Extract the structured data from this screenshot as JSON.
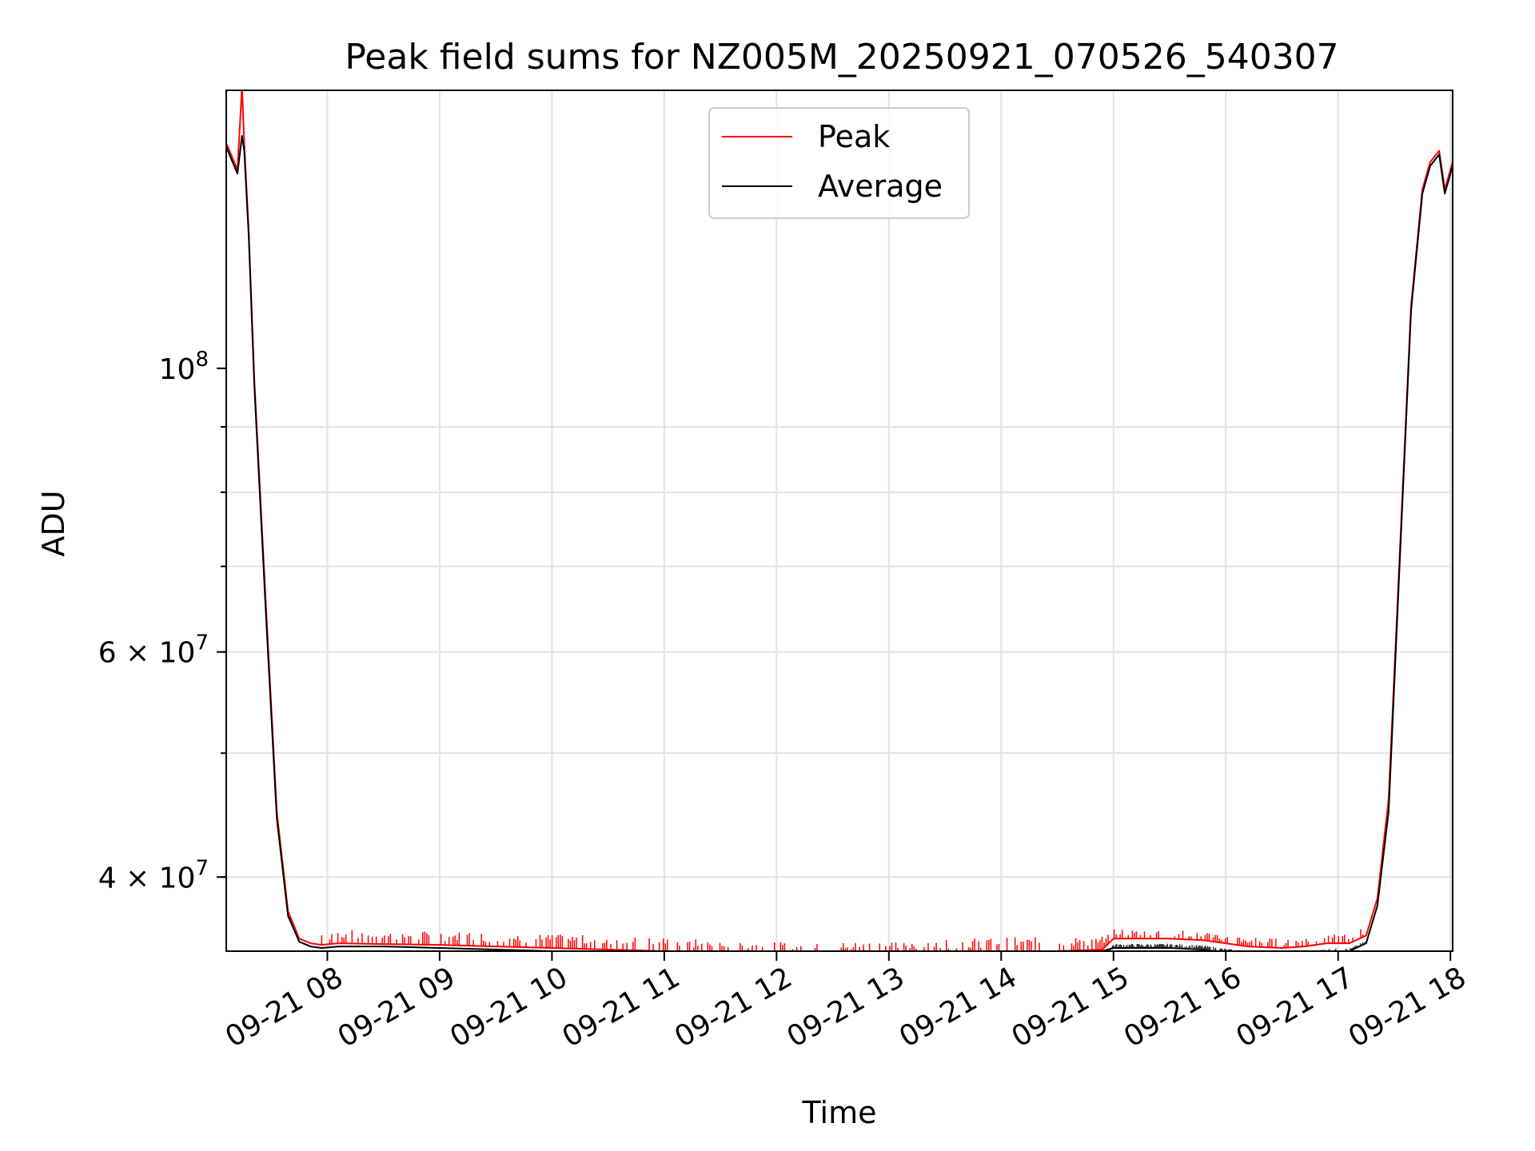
{
  "chart_data": {
    "type": "line",
    "title": "Peak field sums for NZ005M_20250921_070526_540307",
    "xlabel": "Time",
    "ylabel": "ADU",
    "yscale": "log",
    "ylim": [
      35000000,
      165000000
    ],
    "xlim_hours": [
      7.1,
      18.02
    ],
    "grid": true,
    "legend_position": "upper center",
    "x_tick_labels": [
      "09-21 08",
      "09-21 09",
      "09-21 10",
      "09-21 11",
      "09-21 12",
      "09-21 13",
      "09-21 14",
      "09-21 15",
      "09-21 16",
      "09-21 17",
      "09-21 18"
    ],
    "x_tick_hours": [
      8,
      9,
      10,
      11,
      12,
      13,
      14,
      15,
      16,
      17,
      18
    ],
    "y_ticks": [
      {
        "value": 100000000,
        "base": "10",
        "exp": "8"
      },
      {
        "value": 60000000,
        "base": "6 × 10",
        "exp": "7"
      },
      {
        "value": 40000000,
        "base": "4 × 10",
        "exp": "7"
      }
    ],
    "series": [
      {
        "name": "Peak",
        "color": "#ff0000",
        "x_hours": [
          7.1,
          7.2,
          7.24,
          7.26,
          7.3,
          7.35,
          7.45,
          7.55,
          7.65,
          7.75,
          7.85,
          7.95,
          8.1,
          8.5,
          9.0,
          9.5,
          10.0,
          10.5,
          11.0,
          11.5,
          12.0,
          12.3,
          12.6,
          13.0,
          13.5,
          14.0,
          14.5,
          14.9,
          15.0,
          15.5,
          15.8,
          16.2,
          16.5,
          16.7,
          16.9,
          17.1,
          17.25,
          17.35,
          17.45,
          17.55,
          17.65,
          17.75,
          17.82,
          17.9,
          17.95,
          18.02
        ],
        "values": [
          150000000,
          143000000,
          166000000,
          150000000,
          128000000,
          98000000,
          66000000,
          45000000,
          37600000,
          35800000,
          35500000,
          35400000,
          35500000,
          35450000,
          35400000,
          35300000,
          35200000,
          35100000,
          35000000,
          34800000,
          34700000,
          34600000,
          34700000,
          34800000,
          34900000,
          35000000,
          35000000,
          35100000,
          35800000,
          35800000,
          35700000,
          35300000,
          35200000,
          35300000,
          35500000,
          35500000,
          36000000,
          38500000,
          46000000,
          72000000,
          112000000,
          138000000,
          145000000,
          148000000,
          138000000,
          145000000
        ]
      },
      {
        "name": "Average",
        "color": "#000000",
        "x_hours": [
          7.1,
          7.2,
          7.24,
          7.26,
          7.3,
          7.35,
          7.45,
          7.55,
          7.65,
          7.75,
          7.85,
          7.95,
          8.1,
          8.5,
          9.0,
          9.5,
          10.0,
          10.5,
          11.0,
          11.5,
          12.0,
          12.3,
          12.6,
          13.0,
          13.5,
          14.0,
          14.5,
          14.9,
          15.0,
          15.5,
          15.8,
          16.2,
          16.5,
          16.7,
          16.9,
          17.1,
          17.25,
          17.35,
          17.45,
          17.55,
          17.65,
          17.75,
          17.82,
          17.9,
          17.95,
          18.02
        ],
        "values": [
          149000000,
          142000000,
          152000000,
          148000000,
          127000000,
          97000000,
          65000000,
          44500000,
          37300000,
          35600000,
          35300000,
          35200000,
          35300000,
          35300000,
          35200000,
          35100000,
          35000000,
          34900000,
          34700000,
          34600000,
          34500000,
          34400000,
          34600000,
          34700000,
          34800000,
          34900000,
          34900000,
          35000000,
          35200000,
          35200000,
          35100000,
          34700000,
          34600000,
          34800000,
          35000000,
          35000000,
          35500000,
          38000000,
          45000000,
          71000000,
          111000000,
          137000000,
          144000000,
          147000000,
          137000000,
          144000000
        ]
      }
    ]
  }
}
